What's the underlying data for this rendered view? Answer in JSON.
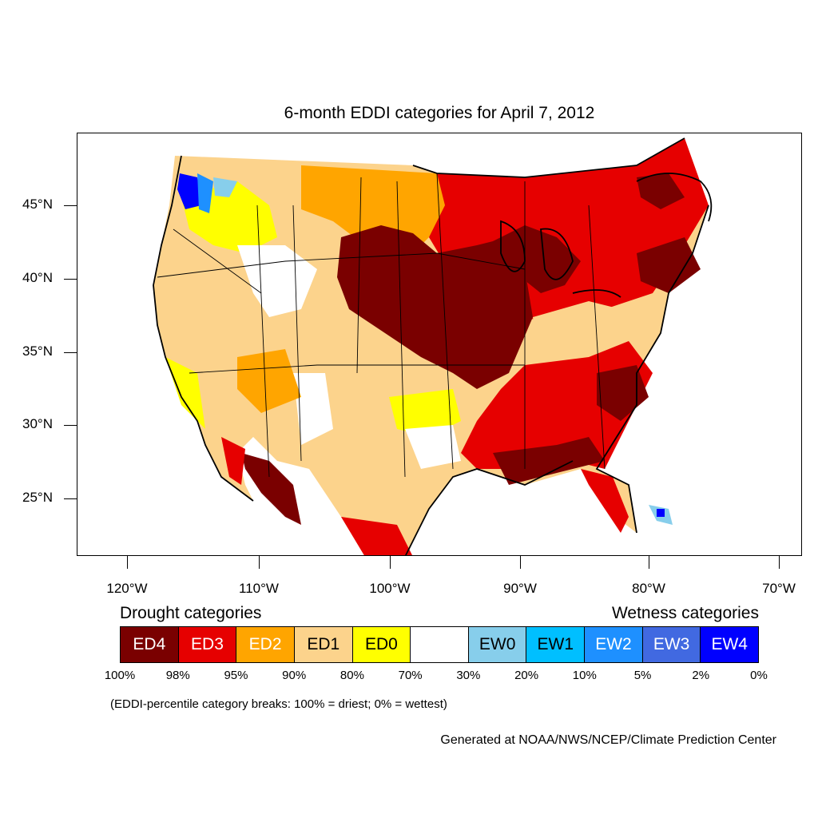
{
  "title": "6-month EDDI categories for April 7, 2012",
  "lat_labels": [
    "45°N",
    "40°N",
    "35°N",
    "30°N",
    "25°N"
  ],
  "lon_labels": [
    "120°W",
    "110°W",
    "100°W",
    "90°W",
    "80°W",
    "70°W"
  ],
  "legend": {
    "drought_heading": "Drought categories",
    "wetness_heading": "Wetness categories",
    "categories": [
      {
        "label": "ED4",
        "color": "#7a0000",
        "text_color": "#ffffff"
      },
      {
        "label": "ED3",
        "color": "#e60000",
        "text_color": "#ffffff"
      },
      {
        "label": "ED2",
        "color": "#ffa500",
        "text_color": "#ffffff"
      },
      {
        "label": "ED1",
        "color": "#fcd38c",
        "text_color": "#000000"
      },
      {
        "label": "ED0",
        "color": "#ffff00",
        "text_color": "#000000"
      },
      {
        "label": "",
        "color": "#ffffff",
        "text_color": "#000000"
      },
      {
        "label": "EW0",
        "color": "#87ceeb",
        "text_color": "#000000"
      },
      {
        "label": "EW1",
        "color": "#00bfff",
        "text_color": "#000000"
      },
      {
        "label": "EW2",
        "color": "#1e90ff",
        "text_color": "#ffffff"
      },
      {
        "label": "EW3",
        "color": "#4169e1",
        "text_color": "#ffffff"
      },
      {
        "label": "EW4",
        "color": "#0000ff",
        "text_color": "#ffffff"
      }
    ],
    "percent_breaks": [
      "100%",
      "98%",
      "95%",
      "90%",
      "80%",
      "70%",
      "30%",
      "20%",
      "10%",
      "5%",
      "2%",
      "0%"
    ]
  },
  "note": "(EDDI-percentile category breaks: 100% = driest; 0% = wettest)",
  "credit": "Generated at NOAA/NWS/NCEP/Climate Prediction Center"
}
